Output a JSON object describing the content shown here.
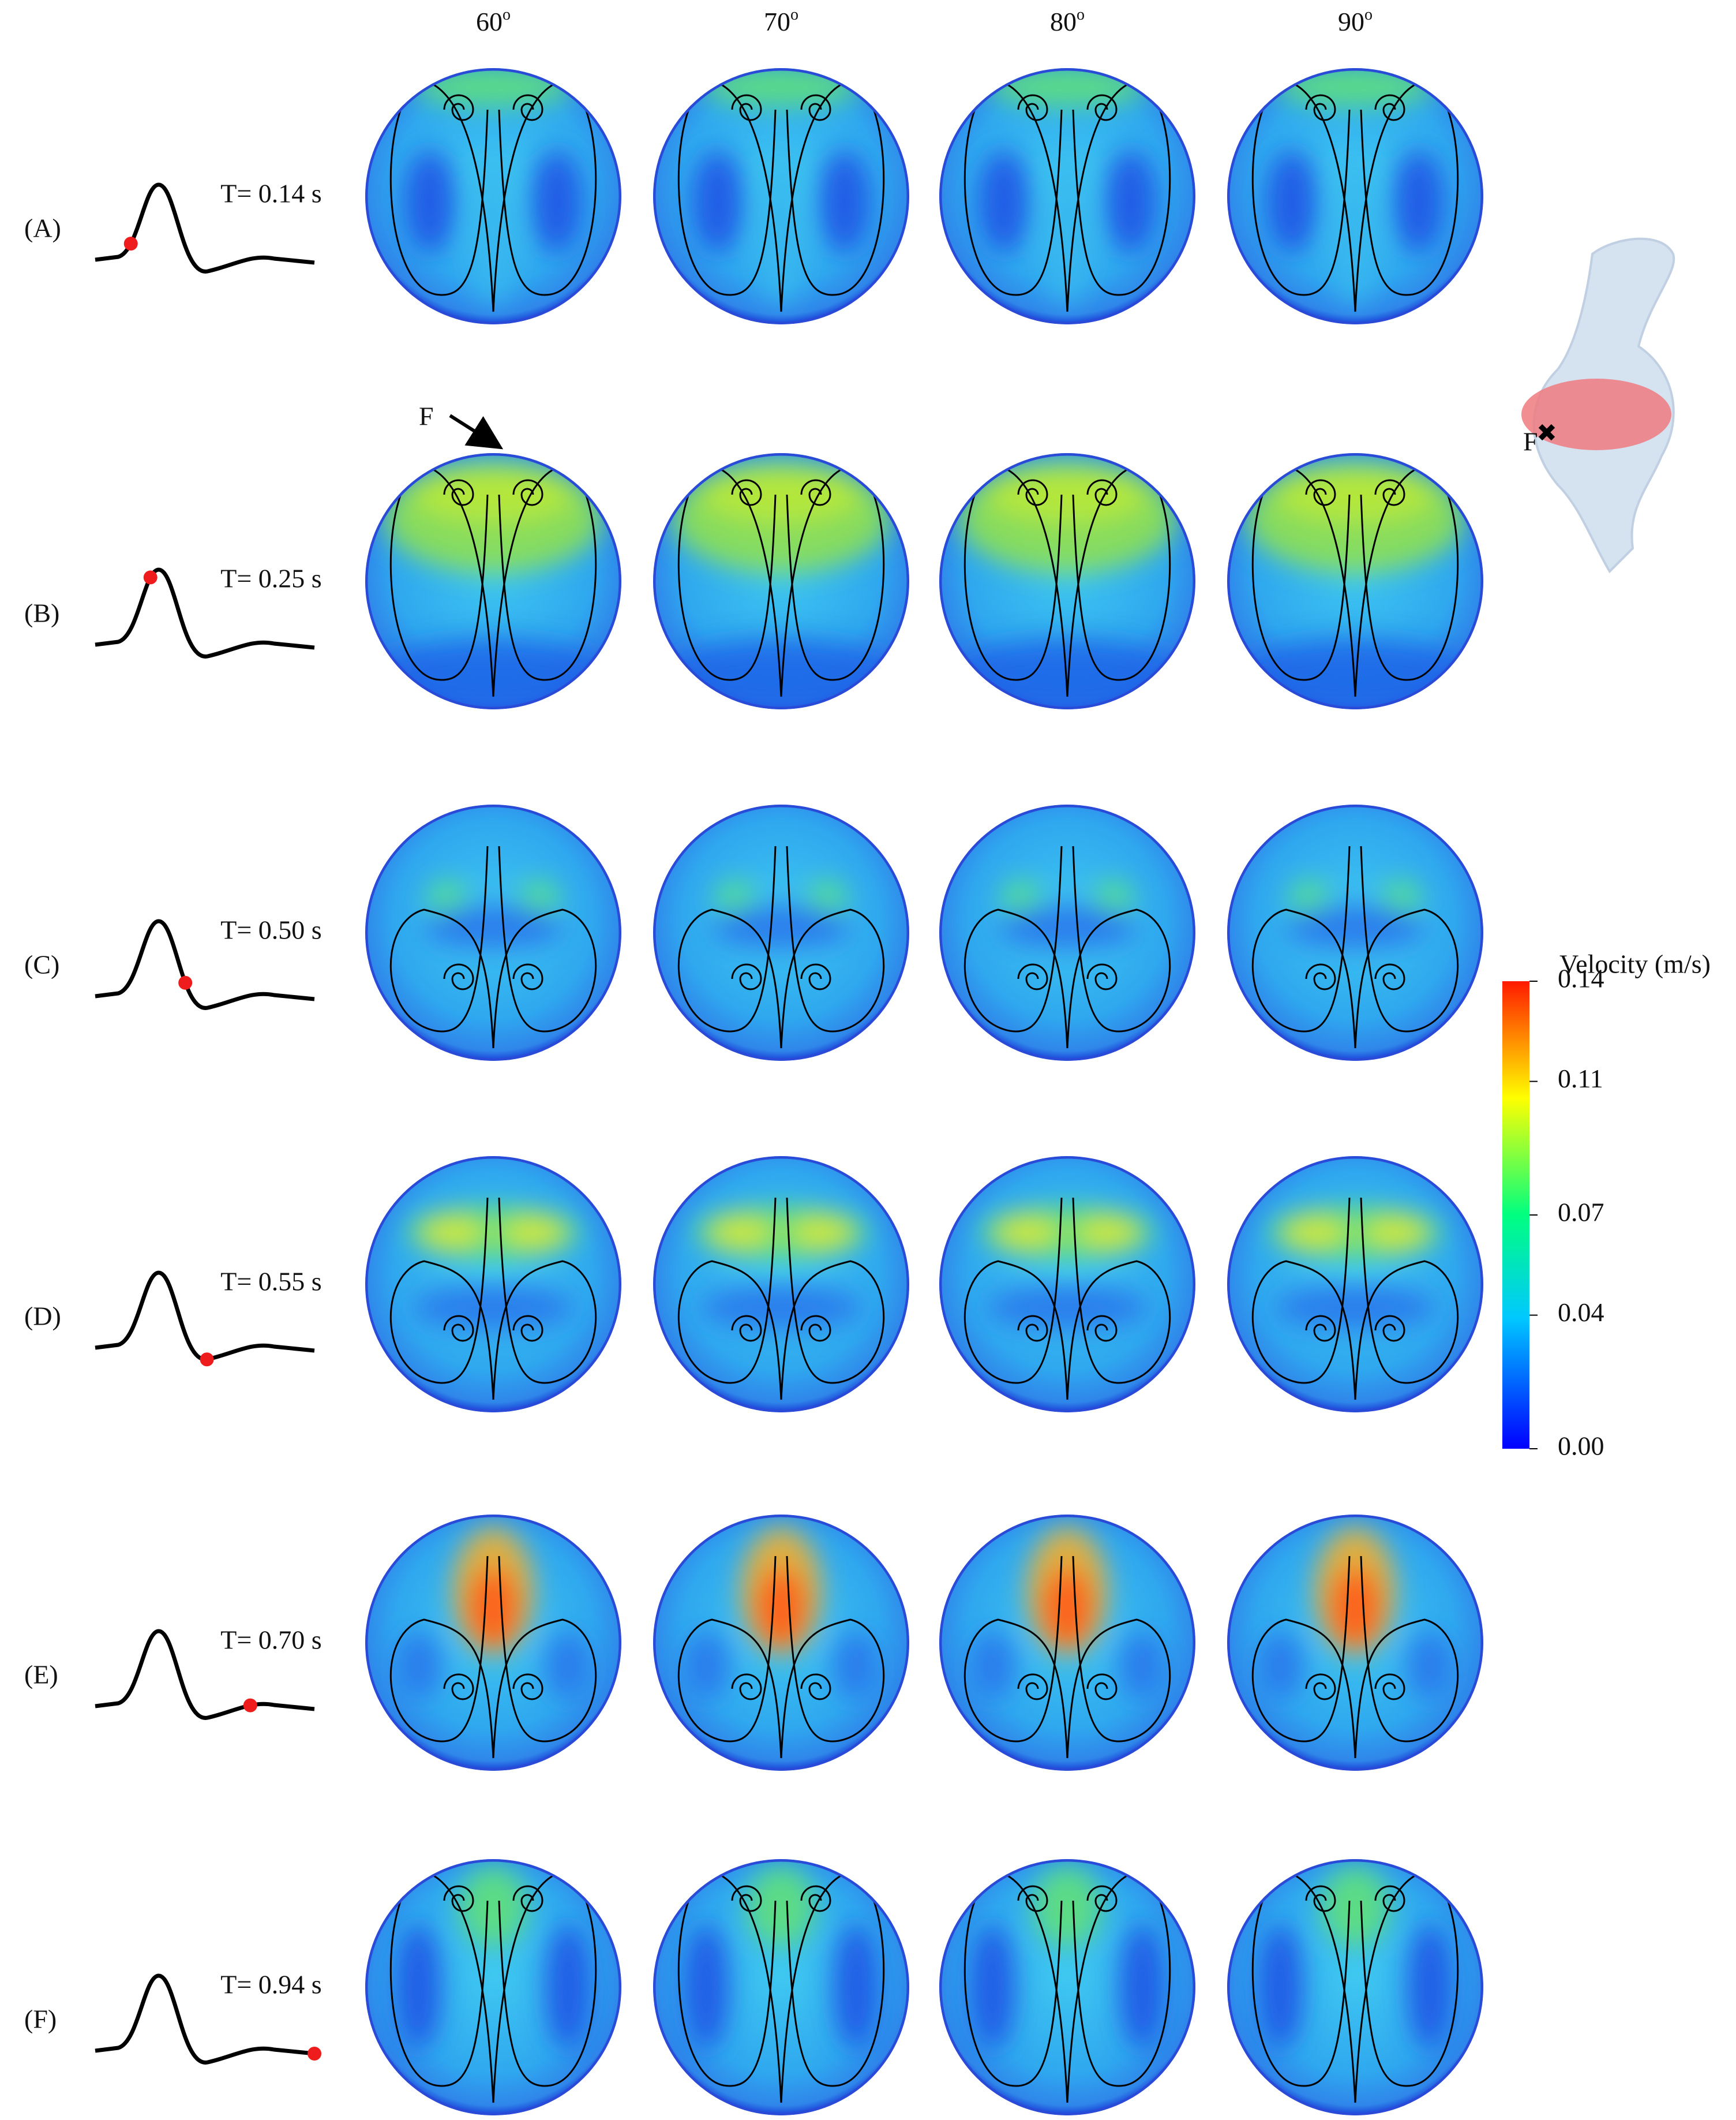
{
  "columns": [
    {
      "angle": "60",
      "sup": "o"
    },
    {
      "angle": "70",
      "sup": "o"
    },
    {
      "angle": "80",
      "sup": "o"
    },
    {
      "angle": "90",
      "sup": "o"
    }
  ],
  "rows": [
    {
      "label": "(A)",
      "time": "T= 0.14 s"
    },
    {
      "label": "(B)",
      "time": "T= 0.25 s"
    },
    {
      "label": "(C)",
      "time": "T= 0.50 s"
    },
    {
      "label": "(D)",
      "time": "T= 0.55 s"
    },
    {
      "label": "(E)",
      "time": "T= 0.70 s"
    },
    {
      "label": "(F)",
      "time": "T= 0.94 s"
    }
  ],
  "annotations": {
    "arrow_label": "F",
    "model_label": "F"
  },
  "colorbar": {
    "title": "Velocity (m/s)",
    "range": [
      0,
      0.14
    ],
    "ticks": [
      {
        "value": 0,
        "label": "0.00"
      },
      0.04,
      0.07,
      0.11,
      0.14
    ]
  }
}
